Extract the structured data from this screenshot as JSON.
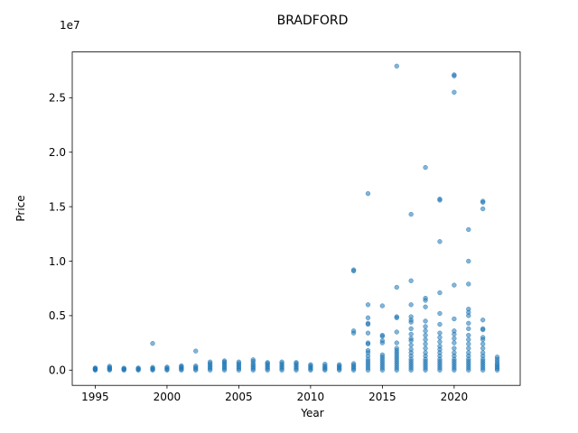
{
  "chart_data": {
    "type": "scatter",
    "title": "BRADFORD",
    "xlabel": "Year",
    "ylabel": "Price",
    "y_offset_label": "1e7",
    "xlim": [
      1993.4,
      2024.6
    ],
    "ylim": [
      -1400000,
      29200000
    ],
    "x_ticks": [
      1995,
      2000,
      2005,
      2010,
      2015,
      2020
    ],
    "y_ticks": [
      0,
      5000000,
      10000000,
      15000000,
      20000000,
      25000000
    ],
    "y_tick_labels": [
      "0.0",
      "0.5",
      "1.0",
      "1.5",
      "2.0",
      "2.5"
    ],
    "grid": false,
    "marker_color": "#1f77b4",
    "marker_alpha": 0.55,
    "series": [
      {
        "points": [
          [
            1995,
            0
          ],
          [
            1995,
            50000
          ],
          [
            1995,
            100000
          ],
          [
            1995,
            150000
          ],
          [
            1995,
            200000
          ],
          [
            1996,
            0
          ],
          [
            1996,
            80000
          ],
          [
            1996,
            150000
          ],
          [
            1996,
            250000
          ],
          [
            1996,
            350000
          ],
          [
            1997,
            0
          ],
          [
            1997,
            60000
          ],
          [
            1997,
            120000
          ],
          [
            1997,
            180000
          ],
          [
            1998,
            0
          ],
          [
            1998,
            60000
          ],
          [
            1998,
            130000
          ],
          [
            1998,
            200000
          ],
          [
            1999,
            0
          ],
          [
            1999,
            80000
          ],
          [
            1999,
            150000
          ],
          [
            1999,
            250000
          ],
          [
            1999,
            2450000
          ],
          [
            2000,
            0
          ],
          [
            2000,
            80000
          ],
          [
            2000,
            180000
          ],
          [
            2000,
            280000
          ],
          [
            2001,
            0
          ],
          [
            2001,
            100000
          ],
          [
            2001,
            200000
          ],
          [
            2001,
            300000
          ],
          [
            2001,
            400000
          ],
          [
            2002,
            0
          ],
          [
            2002,
            120000
          ],
          [
            2002,
            250000
          ],
          [
            2002,
            380000
          ],
          [
            2002,
            1750000
          ],
          [
            2003,
            0
          ],
          [
            2003,
            150000
          ],
          [
            2003,
            300000
          ],
          [
            2003,
            450000
          ],
          [
            2003,
            600000
          ],
          [
            2003,
            750000
          ],
          [
            2004,
            0
          ],
          [
            2004,
            150000
          ],
          [
            2004,
            300000
          ],
          [
            2004,
            450000
          ],
          [
            2004,
            600000
          ],
          [
            2004,
            750000
          ],
          [
            2004,
            850000
          ],
          [
            2005,
            0
          ],
          [
            2005,
            150000
          ],
          [
            2005,
            300000
          ],
          [
            2005,
            450000
          ],
          [
            2005,
            600000
          ],
          [
            2005,
            750000
          ],
          [
            2006,
            0
          ],
          [
            2006,
            150000
          ],
          [
            2006,
            300000
          ],
          [
            2006,
            450000
          ],
          [
            2006,
            600000
          ],
          [
            2006,
            800000
          ],
          [
            2006,
            950000
          ],
          [
            2007,
            0
          ],
          [
            2007,
            150000
          ],
          [
            2007,
            300000
          ],
          [
            2007,
            450000
          ],
          [
            2007,
            600000
          ],
          [
            2007,
            700000
          ],
          [
            2008,
            0
          ],
          [
            2008,
            150000
          ],
          [
            2008,
            300000
          ],
          [
            2008,
            450000
          ],
          [
            2008,
            600000
          ],
          [
            2008,
            750000
          ],
          [
            2009,
            0
          ],
          [
            2009,
            150000
          ],
          [
            2009,
            300000
          ],
          [
            2009,
            450000
          ],
          [
            2009,
            600000
          ],
          [
            2009,
            700000
          ],
          [
            2010,
            0
          ],
          [
            2010,
            120000
          ],
          [
            2010,
            250000
          ],
          [
            2010,
            380000
          ],
          [
            2010,
            500000
          ],
          [
            2011,
            0
          ],
          [
            2011,
            120000
          ],
          [
            2011,
            250000
          ],
          [
            2011,
            380000
          ],
          [
            2011,
            550000
          ],
          [
            2012,
            0
          ],
          [
            2012,
            120000
          ],
          [
            2012,
            250000
          ],
          [
            2012,
            380000
          ],
          [
            2012,
            500000
          ],
          [
            2013,
            0
          ],
          [
            2013,
            150000
          ],
          [
            2013,
            300000
          ],
          [
            2013,
            450000
          ],
          [
            2013,
            600000
          ],
          [
            2013,
            3400000
          ],
          [
            2013,
            3600000
          ],
          [
            2013,
            9100000
          ],
          [
            2013,
            9200000
          ],
          [
            2014,
            0
          ],
          [
            2014,
            200000
          ],
          [
            2014,
            400000
          ],
          [
            2014,
            600000
          ],
          [
            2014,
            800000
          ],
          [
            2014,
            1000000
          ],
          [
            2014,
            1300000
          ],
          [
            2014,
            1600000
          ],
          [
            2014,
            1800000
          ],
          [
            2014,
            2400000
          ],
          [
            2014,
            2500000
          ],
          [
            2014,
            3400000
          ],
          [
            2014,
            4200000
          ],
          [
            2014,
            4300000
          ],
          [
            2014,
            4800000
          ],
          [
            2014,
            6000000
          ],
          [
            2014,
            16200000
          ],
          [
            2015,
            0
          ],
          [
            2015,
            200000
          ],
          [
            2015,
            400000
          ],
          [
            2015,
            600000
          ],
          [
            2015,
            800000
          ],
          [
            2015,
            1000000
          ],
          [
            2015,
            1200000
          ],
          [
            2015,
            1400000
          ],
          [
            2015,
            2500000
          ],
          [
            2015,
            2700000
          ],
          [
            2015,
            3100000
          ],
          [
            2015,
            3200000
          ],
          [
            2015,
            5900000
          ],
          [
            2016,
            0
          ],
          [
            2016,
            200000
          ],
          [
            2016,
            400000
          ],
          [
            2016,
            600000
          ],
          [
            2016,
            800000
          ],
          [
            2016,
            1000000
          ],
          [
            2016,
            1200000
          ],
          [
            2016,
            1400000
          ],
          [
            2016,
            1600000
          ],
          [
            2016,
            1800000
          ],
          [
            2016,
            2000000
          ],
          [
            2016,
            2500000
          ],
          [
            2016,
            3500000
          ],
          [
            2016,
            4800000
          ],
          [
            2016,
            4900000
          ],
          [
            2016,
            7600000
          ],
          [
            2016,
            27900000
          ],
          [
            2017,
            0
          ],
          [
            2017,
            200000
          ],
          [
            2017,
            400000
          ],
          [
            2017,
            600000
          ],
          [
            2017,
            800000
          ],
          [
            2017,
            1000000
          ],
          [
            2017,
            1300000
          ],
          [
            2017,
            1600000
          ],
          [
            2017,
            1900000
          ],
          [
            2017,
            2300000
          ],
          [
            2017,
            2700000
          ],
          [
            2017,
            2900000
          ],
          [
            2017,
            3300000
          ],
          [
            2017,
            3800000
          ],
          [
            2017,
            4400000
          ],
          [
            2017,
            4600000
          ],
          [
            2017,
            4900000
          ],
          [
            2017,
            6000000
          ],
          [
            2017,
            8200000
          ],
          [
            2017,
            14300000
          ],
          [
            2018,
            0
          ],
          [
            2018,
            200000
          ],
          [
            2018,
            400000
          ],
          [
            2018,
            600000
          ],
          [
            2018,
            800000
          ],
          [
            2018,
            1000000
          ],
          [
            2018,
            1300000
          ],
          [
            2018,
            1600000
          ],
          [
            2018,
            2000000
          ],
          [
            2018,
            2400000
          ],
          [
            2018,
            2800000
          ],
          [
            2018,
            3200000
          ],
          [
            2018,
            3600000
          ],
          [
            2018,
            4000000
          ],
          [
            2018,
            4500000
          ],
          [
            2018,
            5800000
          ],
          [
            2018,
            6400000
          ],
          [
            2018,
            6600000
          ],
          [
            2018,
            18600000
          ],
          [
            2019,
            0
          ],
          [
            2019,
            200000
          ],
          [
            2019,
            400000
          ],
          [
            2019,
            600000
          ],
          [
            2019,
            800000
          ],
          [
            2019,
            1000000
          ],
          [
            2019,
            1300000
          ],
          [
            2019,
            1600000
          ],
          [
            2019,
            1900000
          ],
          [
            2019,
            2200000
          ],
          [
            2019,
            2600000
          ],
          [
            2019,
            3000000
          ],
          [
            2019,
            3400000
          ],
          [
            2019,
            4200000
          ],
          [
            2019,
            5200000
          ],
          [
            2019,
            7100000
          ],
          [
            2019,
            11800000
          ],
          [
            2019,
            15600000
          ],
          [
            2019,
            15700000
          ],
          [
            2020,
            0
          ],
          [
            2020,
            200000
          ],
          [
            2020,
            400000
          ],
          [
            2020,
            600000
          ],
          [
            2020,
            800000
          ],
          [
            2020,
            1000000
          ],
          [
            2020,
            1300000
          ],
          [
            2020,
            1600000
          ],
          [
            2020,
            2000000
          ],
          [
            2020,
            2500000
          ],
          [
            2020,
            2900000
          ],
          [
            2020,
            3300000
          ],
          [
            2020,
            3600000
          ],
          [
            2020,
            4700000
          ],
          [
            2020,
            7800000
          ],
          [
            2020,
            25500000
          ],
          [
            2020,
            27000000
          ],
          [
            2020,
            27100000
          ],
          [
            2021,
            0
          ],
          [
            2021,
            200000
          ],
          [
            2021,
            400000
          ],
          [
            2021,
            600000
          ],
          [
            2021,
            800000
          ],
          [
            2021,
            1000000
          ],
          [
            2021,
            1300000
          ],
          [
            2021,
            1600000
          ],
          [
            2021,
            2000000
          ],
          [
            2021,
            2400000
          ],
          [
            2021,
            2800000
          ],
          [
            2021,
            3200000
          ],
          [
            2021,
            3800000
          ],
          [
            2021,
            4300000
          ],
          [
            2021,
            5000000
          ],
          [
            2021,
            5300000
          ],
          [
            2021,
            5600000
          ],
          [
            2021,
            7900000
          ],
          [
            2021,
            10000000
          ],
          [
            2021,
            12900000
          ],
          [
            2022,
            0
          ],
          [
            2022,
            200000
          ],
          [
            2022,
            400000
          ],
          [
            2022,
            600000
          ],
          [
            2022,
            800000
          ],
          [
            2022,
            1000000
          ],
          [
            2022,
            1300000
          ],
          [
            2022,
            1600000
          ],
          [
            2022,
            2000000
          ],
          [
            2022,
            2400000
          ],
          [
            2022,
            2800000
          ],
          [
            2022,
            3000000
          ],
          [
            2022,
            3700000
          ],
          [
            2022,
            3800000
          ],
          [
            2022,
            4600000
          ],
          [
            2022,
            14800000
          ],
          [
            2022,
            15400000
          ],
          [
            2022,
            15500000
          ],
          [
            2023,
            0
          ],
          [
            2023,
            150000
          ],
          [
            2023,
            300000
          ],
          [
            2023,
            450000
          ],
          [
            2023,
            600000
          ],
          [
            2023,
            800000
          ],
          [
            2023,
            1000000
          ],
          [
            2023,
            1200000
          ]
        ]
      }
    ]
  }
}
